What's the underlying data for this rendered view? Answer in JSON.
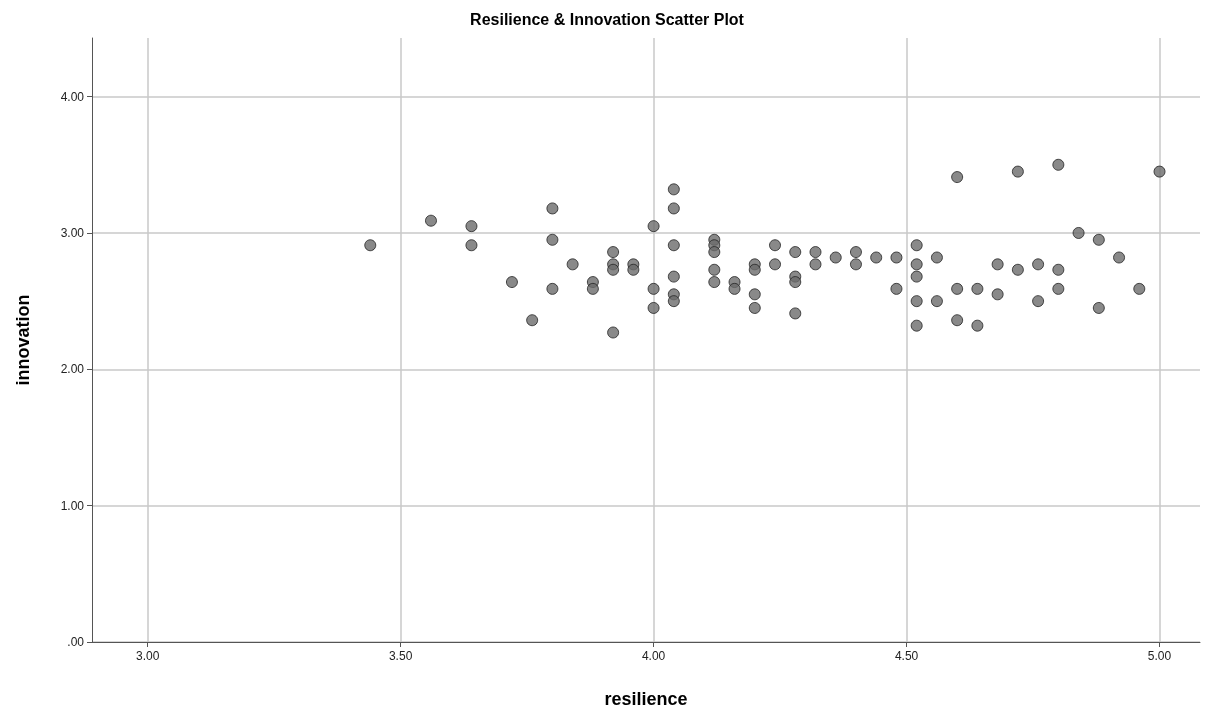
{
  "chart_data": {
    "type": "scatter",
    "title": "Resilience & Innovation Scatter Plot",
    "xlabel": "resilience",
    "ylabel": "innovation",
    "x": [
      3.44,
      3.56,
      3.64,
      3.64,
      3.72,
      3.76,
      3.8,
      3.8,
      3.8,
      3.84,
      3.88,
      3.88,
      3.92,
      3.92,
      3.92,
      3.92,
      3.96,
      3.96,
      4.0,
      4.0,
      4.0,
      4.04,
      4.04,
      4.04,
      4.04,
      4.04,
      4.04,
      4.12,
      4.12,
      4.12,
      4.12,
      4.12,
      4.16,
      4.16,
      4.2,
      4.2,
      4.2,
      4.2,
      4.24,
      4.24,
      4.28,
      4.28,
      4.28,
      4.28,
      4.32,
      4.32,
      4.36,
      4.4,
      4.4,
      4.44,
      4.48,
      4.48,
      4.52,
      4.52,
      4.52,
      4.52,
      4.52,
      4.56,
      4.56,
      4.6,
      4.6,
      4.6,
      4.64,
      4.64,
      4.68,
      4.68,
      4.72,
      4.72,
      4.76,
      4.76,
      4.8,
      4.8,
      4.8,
      4.84,
      4.88,
      4.88,
      4.92,
      4.96,
      5.0
    ],
    "values": [
      2.91,
      3.09,
      3.05,
      2.91,
      2.64,
      2.36,
      3.18,
      2.95,
      2.59,
      2.77,
      2.64,
      2.59,
      2.86,
      2.77,
      2.73,
      2.27,
      2.77,
      2.73,
      3.05,
      2.59,
      2.45,
      3.32,
      3.18,
      2.91,
      2.68,
      2.55,
      2.5,
      2.95,
      2.91,
      2.86,
      2.73,
      2.64,
      2.64,
      2.59,
      2.77,
      2.73,
      2.55,
      2.45,
      2.91,
      2.77,
      2.86,
      2.68,
      2.64,
      2.41,
      2.86,
      2.77,
      2.82,
      2.86,
      2.77,
      2.82,
      2.82,
      2.59,
      2.91,
      2.77,
      2.68,
      2.5,
      2.32,
      2.82,
      2.5,
      3.41,
      2.59,
      2.36,
      2.59,
      2.32,
      2.77,
      2.55,
      3.45,
      2.73,
      2.77,
      2.5,
      3.5,
      2.73,
      2.59,
      3.0,
      2.95,
      2.45,
      2.82,
      2.59,
      3.45
    ],
    "color": "#6b6b6b",
    "marker": "circle",
    "grid": true,
    "xlim": [
      2.89,
      5.08
    ],
    "xticks": [
      {
        "value": 3,
        "label": "3.00"
      },
      {
        "value": 3.5,
        "label": "3.50"
      },
      {
        "value": 4,
        "label": "4.00"
      },
      {
        "value": 4.5,
        "label": "4.50"
      },
      {
        "value": 5,
        "label": "5.00"
      }
    ],
    "ylim": [
      0,
      4.43
    ],
    "yticks": [
      {
        "value": 0,
        "label": ".00"
      },
      {
        "value": 1,
        "label": "1.00"
      },
      {
        "value": 2,
        "label": "2.00"
      },
      {
        "value": 3,
        "label": "3.00"
      },
      {
        "value": 4,
        "label": "4.00"
      }
    ]
  }
}
